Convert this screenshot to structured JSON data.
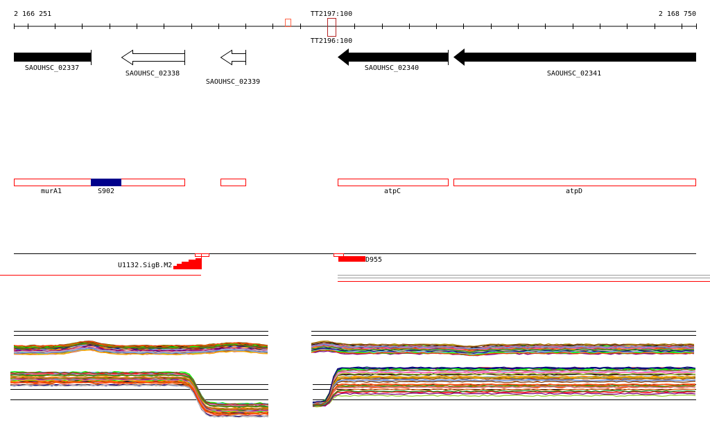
{
  "ruler": {
    "start_label": "2 166 251",
    "end_label": "2 168 750"
  },
  "terminators": {
    "top_label": "TT2197:100",
    "bottom_label": "TT2196:100"
  },
  "genes": [
    {
      "name": "SAOUHSC_02337",
      "strand": "+",
      "style": "filled"
    },
    {
      "name": "SAOUHSC_02338",
      "strand": "-",
      "style": "open"
    },
    {
      "name": "SAOUHSC_02339",
      "strand": "-",
      "style": "open"
    },
    {
      "name": "SAOUHSC_02340",
      "strand": "-",
      "style": "filled"
    },
    {
      "name": "SAOUHSC_02341",
      "strand": "-",
      "style": "filled"
    }
  ],
  "features": [
    {
      "name": "murA1"
    },
    {
      "name": "S902"
    },
    {
      "name": "atpC"
    },
    {
      "name": "atpD"
    }
  ],
  "promoters": {
    "left_label": "U1132.SigB.M2",
    "right_label": "D955"
  },
  "colors": {
    "feature_outline": "#ff0000",
    "srna_fill": "#00008b",
    "terminator": "#b22222",
    "terminator_light": "#ff6347",
    "gene": "#000000"
  },
  "expression_palette": [
    "#000000",
    "#ff6347",
    "#808000",
    "#ff0000",
    "#9acd32",
    "#87cefa",
    "#800080",
    "#ff69b4",
    "#d2691e",
    "#00ff00",
    "#a0522d",
    "#ffa500",
    "#000080",
    "#db7093",
    "#c0c0c0",
    "#b8860b",
    "#ff4500",
    "#6495ed",
    "#228b22",
    "#8b4513"
  ]
}
